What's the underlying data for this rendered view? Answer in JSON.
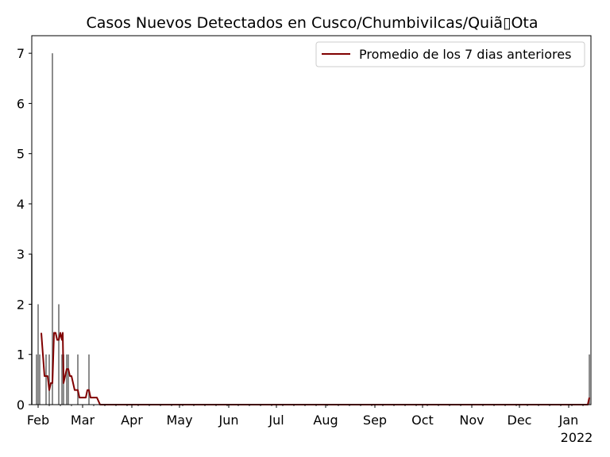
{
  "chart_data": {
    "type": "bar",
    "title": "Casos Nuevos Detectados en Cusco/Chumbivilcas/Quiã\u0000Ota",
    "title_display": "Casos Nuevos Detectados en Cusco/Chumbivilcas/Quiã▯Ota",
    "xlabel": "",
    "ylabel": "",
    "ylim": [
      0,
      7.35
    ],
    "y_ticks": [
      0,
      1,
      2,
      3,
      4,
      5,
      6,
      7
    ],
    "x_range": [
      "2021-01-28",
      "2022-01-15"
    ],
    "x_tick_labels": [
      {
        "date": "2021-02-01",
        "label": "Feb"
      },
      {
        "date": "2021-03-01",
        "label": "Mar"
      },
      {
        "date": "2021-04-01",
        "label": "Apr"
      },
      {
        "date": "2021-05-01",
        "label": "May"
      },
      {
        "date": "2021-06-01",
        "label": "Jun"
      },
      {
        "date": "2021-07-01",
        "label": "Jul"
      },
      {
        "date": "2021-08-01",
        "label": "Aug"
      },
      {
        "date": "2021-09-01",
        "label": "Sep"
      },
      {
        "date": "2021-10-01",
        "label": "Oct"
      },
      {
        "date": "2021-11-01",
        "label": "Nov"
      },
      {
        "date": "2021-12-01",
        "label": "Dec"
      },
      {
        "date": "2022-01-01",
        "label": "Jan"
      }
    ],
    "x_year_label": "2022",
    "grid": false,
    "legend_position": "top-right",
    "colors": {
      "bars": "#808080",
      "line": "#800000"
    },
    "series": [
      {
        "name": "",
        "kind": "bar",
        "points": [
          {
            "date": "2021-01-28",
            "value": 3
          },
          {
            "date": "2021-01-31",
            "value": 1
          },
          {
            "date": "2021-02-01",
            "value": 2
          },
          {
            "date": "2021-02-02",
            "value": 1
          },
          {
            "date": "2021-02-06",
            "value": 1
          },
          {
            "date": "2021-02-08",
            "value": 1
          },
          {
            "date": "2021-02-10",
            "value": 7
          },
          {
            "date": "2021-02-14",
            "value": 2
          },
          {
            "date": "2021-02-16",
            "value": 1
          },
          {
            "date": "2021-02-17",
            "value": 1
          },
          {
            "date": "2021-02-19",
            "value": 1
          },
          {
            "date": "2021-02-20",
            "value": 1
          },
          {
            "date": "2021-02-26",
            "value": 1
          },
          {
            "date": "2021-03-05",
            "value": 1
          },
          {
            "date": "2022-01-14",
            "value": 1
          }
        ]
      },
      {
        "name": "Promedio de los 7 dias anteriores",
        "kind": "line",
        "points": [
          {
            "date": "2021-02-03",
            "value": 1.43
          },
          {
            "date": "2021-02-05",
            "value": 0.57
          },
          {
            "date": "2021-02-07",
            "value": 0.57
          },
          {
            "date": "2021-02-08",
            "value": 0.29
          },
          {
            "date": "2021-02-09",
            "value": 0.43
          },
          {
            "date": "2021-02-10",
            "value": 0.43
          },
          {
            "date": "2021-02-11",
            "value": 1.43
          },
          {
            "date": "2021-02-12",
            "value": 1.43
          },
          {
            "date": "2021-02-13",
            "value": 1.29
          },
          {
            "date": "2021-02-14",
            "value": 1.29
          },
          {
            "date": "2021-02-15",
            "value": 1.43
          },
          {
            "date": "2021-02-16",
            "value": 1.29
          },
          {
            "date": "2021-02-16.5",
            "value": 1.43
          },
          {
            "date": "2021-02-17",
            "value": 0.43
          },
          {
            "date": "2021-02-18",
            "value": 0.57
          },
          {
            "date": "2021-02-19",
            "value": 0.71
          },
          {
            "date": "2021-02-20",
            "value": 0.71
          },
          {
            "date": "2021-02-21",
            "value": 0.57
          },
          {
            "date": "2021-02-22",
            "value": 0.57
          },
          {
            "date": "2021-02-24",
            "value": 0.29
          },
          {
            "date": "2021-02-26",
            "value": 0.29
          },
          {
            "date": "2021-02-27",
            "value": 0.14
          },
          {
            "date": "2021-03-01",
            "value": 0.14
          },
          {
            "date": "2021-03-03",
            "value": 0.14
          },
          {
            "date": "2021-03-04",
            "value": 0.29
          },
          {
            "date": "2021-03-05",
            "value": 0.29
          },
          {
            "date": "2021-03-06",
            "value": 0.14
          },
          {
            "date": "2021-03-10",
            "value": 0.14
          },
          {
            "date": "2021-03-12",
            "value": 0
          },
          {
            "date": "2022-01-13",
            "value": 0
          },
          {
            "date": "2022-01-14",
            "value": 0.14
          }
        ]
      }
    ]
  }
}
